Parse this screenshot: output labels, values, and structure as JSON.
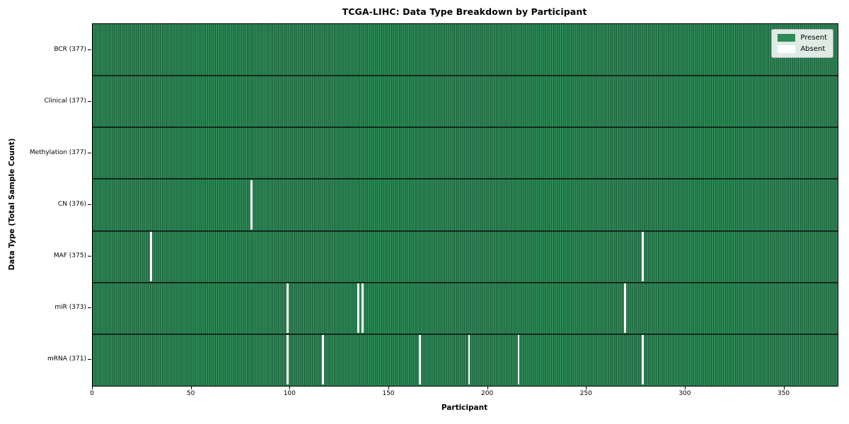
{
  "title": "TCGA-LIHC: Data Type Breakdown by Participant",
  "x_axis_title": "Participant",
  "y_axis_title": "Data Type (Total Sample Count)",
  "colors": {
    "present": "#2e8b57",
    "absent": "#ffffff",
    "column_edge": "#1e5e3c",
    "row_separator": "#0f2a1c",
    "plot_border": "#000000",
    "legend_bg": "#e9ece9",
    "legend_border": "#b5b5b5"
  },
  "chart_data": {
    "type": "heatmap",
    "title": "TCGA-LIHC: Data Type Breakdown by Participant",
    "xlabel": "Participant",
    "ylabel": "Data Type (Total Sample Count)",
    "x_axis": {
      "ticks": [
        0,
        50,
        100,
        150,
        200,
        250,
        300,
        350
      ],
      "range": [
        0,
        377
      ]
    },
    "n_participants": 377,
    "cell_states": [
      "Present",
      "Absent"
    ],
    "rows": [
      {
        "label": "BCR (377)",
        "data_type": "BCR",
        "total": 377,
        "absent_participants": []
      },
      {
        "label": "Clinical (377)",
        "data_type": "Clinical",
        "total": 377,
        "absent_participants": []
      },
      {
        "label": "Methylation (377)",
        "data_type": "Methylation",
        "total": 377,
        "absent_participants": []
      },
      {
        "label": "CN (376)",
        "data_type": "CN",
        "total": 376,
        "absent_participants": [
          80
        ]
      },
      {
        "label": "MAF (375)",
        "data_type": "MAF",
        "total": 375,
        "absent_participants": [
          29,
          278
        ]
      },
      {
        "label": "miR (373)",
        "data_type": "miR",
        "total": 373,
        "absent_participants": [
          98,
          134,
          136,
          269
        ]
      },
      {
        "label": "mRNA (371)",
        "data_type": "mRNA",
        "total": 371,
        "absent_participants": [
          98,
          116,
          165,
          190,
          215,
          278
        ]
      }
    ],
    "legend": [
      {
        "label": "Present",
        "color": "#2e8b57"
      },
      {
        "label": "Absent",
        "color": "#ffffff"
      }
    ],
    "legend_position": "upper right",
    "grid": false
  }
}
